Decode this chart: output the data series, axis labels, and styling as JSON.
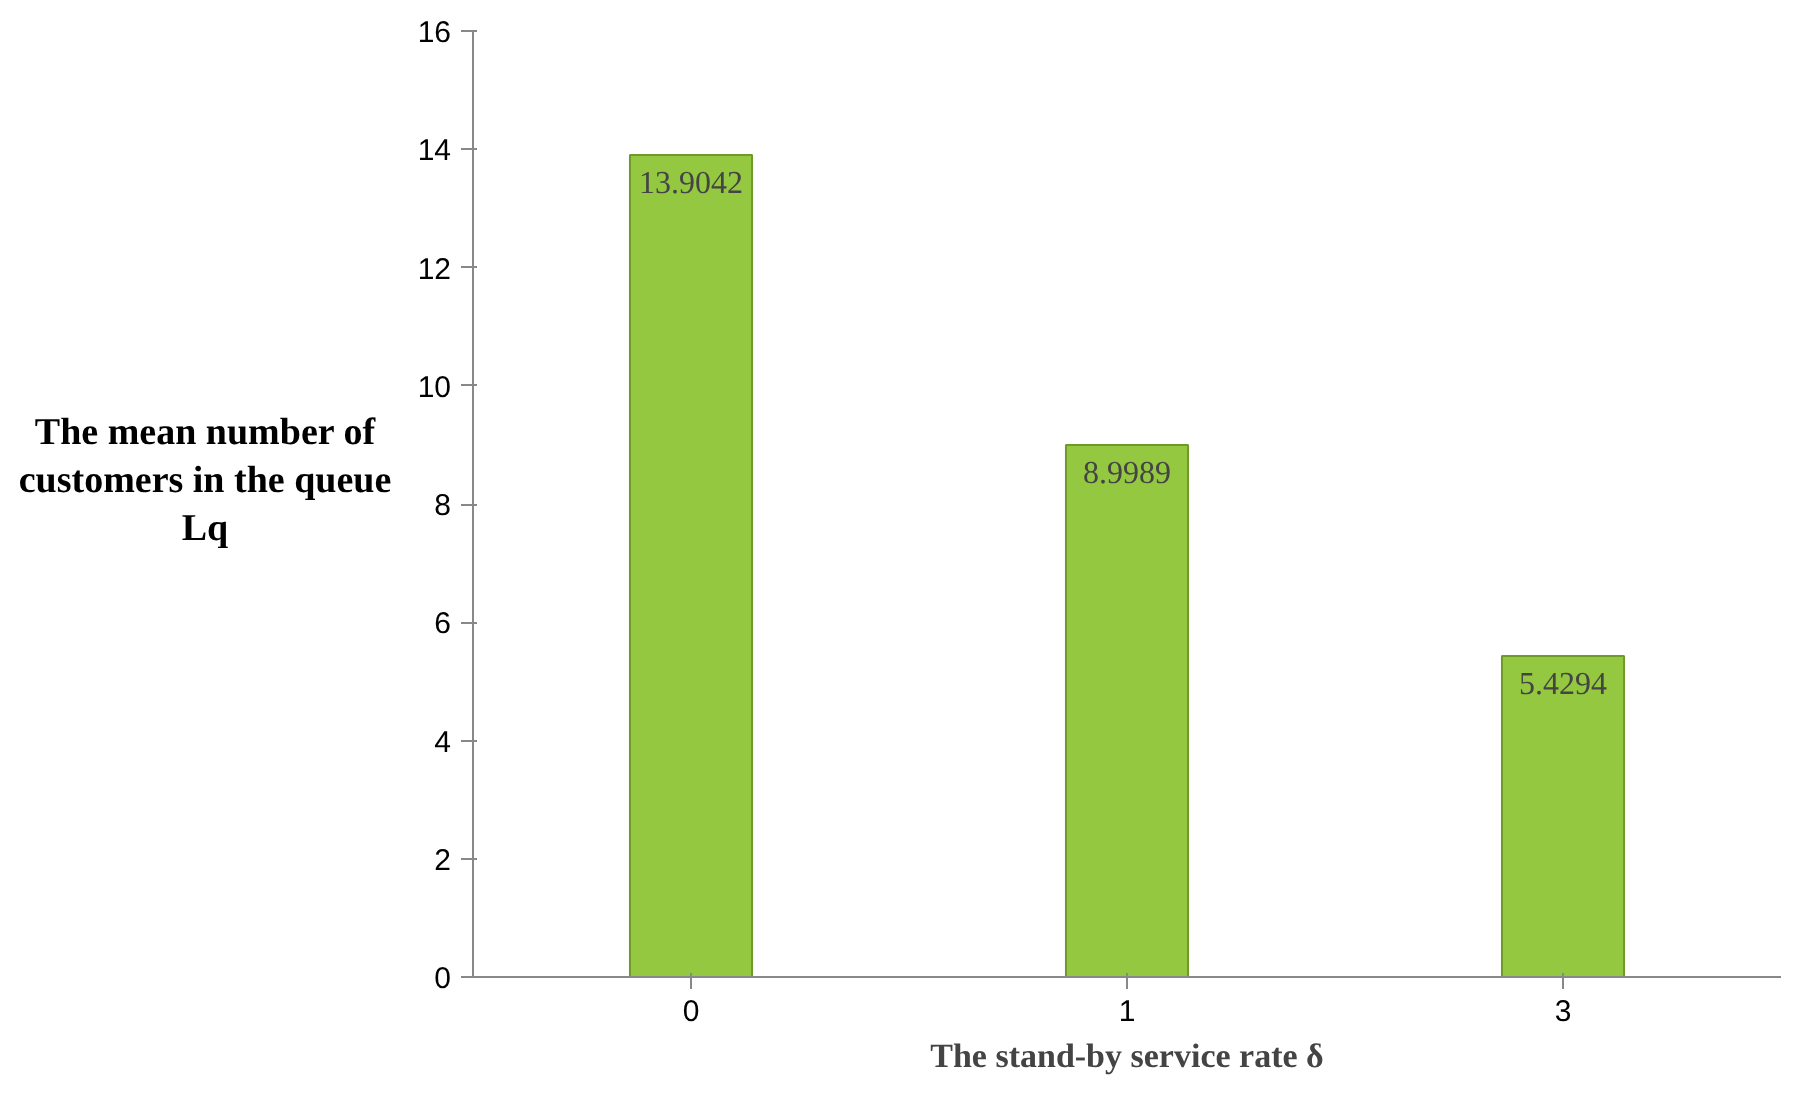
{
  "chart_data": {
    "type": "bar",
    "xlabel": "The stand-by service rate δ",
    "ylabel": "The mean number of customers in the queue Lq",
    "categories": [
      "0",
      "1",
      "3"
    ],
    "values": [
      13.9042,
      8.9989,
      5.4294
    ],
    "color": "#94c840",
    "ylim": [
      0,
      16
    ],
    "yticks": [
      0,
      2,
      4,
      6,
      8,
      10,
      12,
      14,
      16
    ],
    "grid": false,
    "data_labels": true
  }
}
